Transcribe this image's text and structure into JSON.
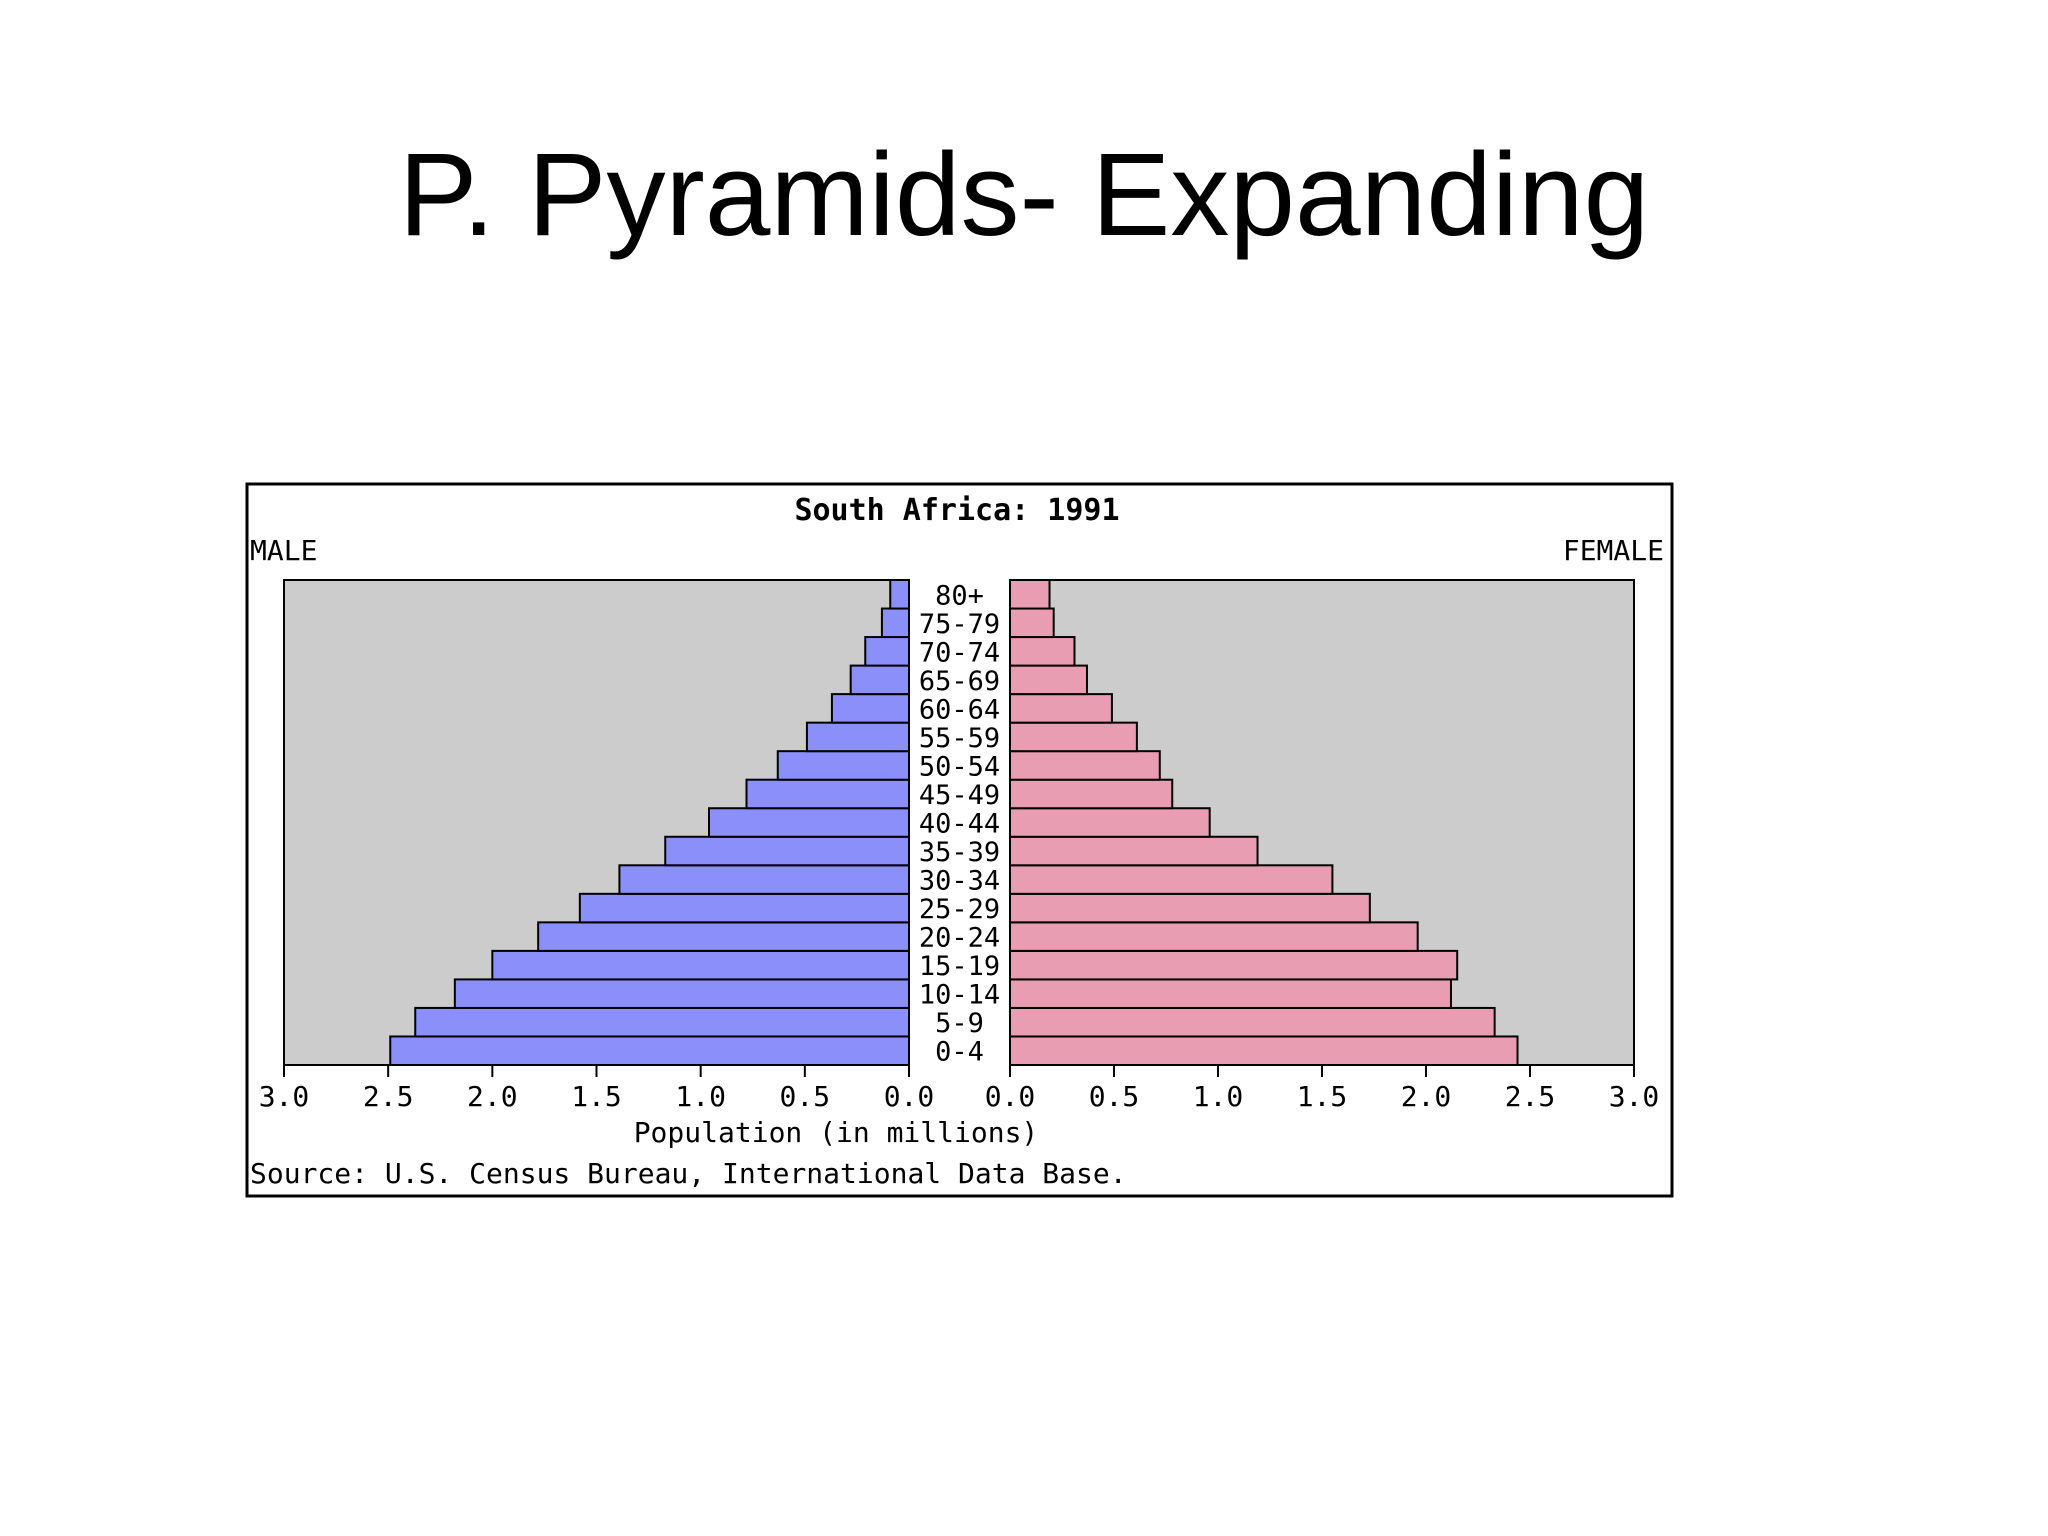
{
  "slide": {
    "title": "P. Pyramids- Expanding"
  },
  "colors": {
    "male_bar": "#8a8ffa",
    "female_bar": "#e99db3",
    "plot_background": "#cccccc",
    "frame": "#000000"
  },
  "chart_data": {
    "type": "bar",
    "orientation": "horizontal",
    "layout": "population-pyramid",
    "title": "South Africa: 1991",
    "left_label": "MALE",
    "right_label": "FEMALE",
    "xlabel": "Population (in millions)",
    "source": "Source: U.S. Census Bureau, International Data Base.",
    "categories": [
      "0-4",
      "5-9",
      "10-14",
      "15-19",
      "20-24",
      "25-29",
      "30-34",
      "35-39",
      "40-44",
      "45-49",
      "50-54",
      "55-59",
      "60-64",
      "65-69",
      "70-74",
      "75-79",
      "80+"
    ],
    "series": [
      {
        "name": "MALE",
        "values": [
          2.49,
          2.37,
          2.18,
          2.0,
          1.78,
          1.58,
          1.39,
          1.17,
          0.96,
          0.78,
          0.63,
          0.49,
          0.37,
          0.28,
          0.21,
          0.13,
          0.09
        ]
      },
      {
        "name": "FEMALE",
        "values": [
          2.44,
          2.33,
          2.12,
          2.15,
          1.96,
          1.73,
          1.55,
          1.19,
          0.96,
          0.78,
          0.72,
          0.61,
          0.49,
          0.37,
          0.31,
          0.21,
          0.19
        ]
      }
    ],
    "xlim": [
      0,
      3.0
    ],
    "xticks_left": [
      "3.0",
      "2.5",
      "2.0",
      "1.5",
      "1.0",
      "0.5",
      "0.0"
    ],
    "xticks_right": [
      "0.0",
      "0.5",
      "1.0",
      "1.5",
      "2.0",
      "2.5",
      "3.0"
    ],
    "grid": false,
    "legend": "none"
  }
}
